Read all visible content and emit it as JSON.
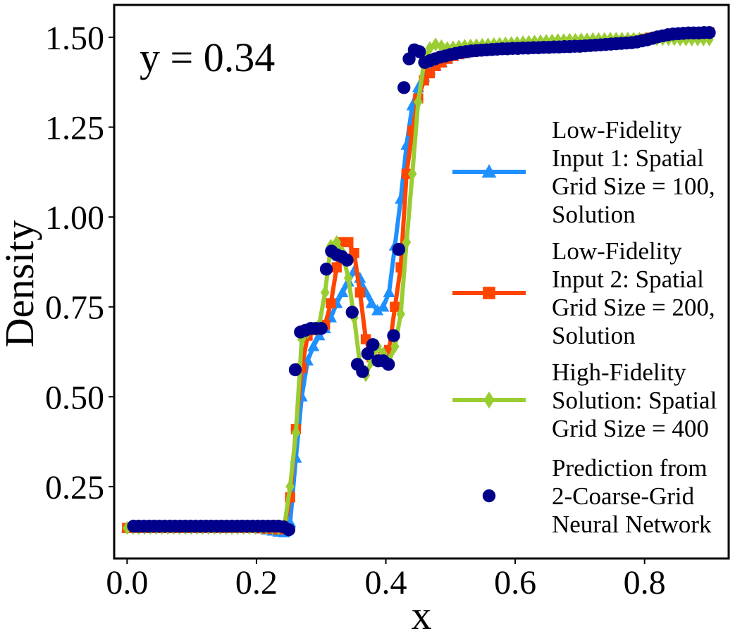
{
  "chart_data": {
    "type": "line",
    "title": "",
    "xlabel": "x",
    "ylabel": "Density",
    "annotation": "y = 0.34",
    "xlim": [
      -0.02,
      0.93
    ],
    "ylim": [
      0.05,
      1.59
    ],
    "xticks": [
      0.0,
      0.2,
      0.4,
      0.6,
      0.8
    ],
    "xtick_labels": [
      "0.0",
      "0.2",
      "0.4",
      "0.6",
      "0.8"
    ],
    "yticks": [
      0.25,
      0.5,
      0.75,
      1.0,
      1.25,
      1.5
    ],
    "ytick_labels": [
      "0.25",
      "0.50",
      "0.75",
      "1.00",
      "1.25",
      "1.50"
    ],
    "grid": false,
    "legend_position": "right",
    "series": [
      {
        "name": "Low-Fidelity Input 1: Spatial Grid Size = 100, Solution",
        "legend_lines": [
          "Low-Fidelity",
          "Input 1: Spatial",
          "Grid Size = 100,",
          "Solution"
        ],
        "color": "#1e90ff",
        "marker": "triangle",
        "x": [
          0.0,
          0.009,
          0.018,
          0.027,
          0.036,
          0.045,
          0.054,
          0.063,
          0.072,
          0.081,
          0.09,
          0.099,
          0.108,
          0.117,
          0.126,
          0.135,
          0.144,
          0.153,
          0.162,
          0.171,
          0.18,
          0.189,
          0.198,
          0.207,
          0.216,
          0.225,
          0.234,
          0.243,
          0.252,
          0.261,
          0.27,
          0.279,
          0.288,
          0.297,
          0.306,
          0.315,
          0.324,
          0.333,
          0.342,
          0.351,
          0.36,
          0.369,
          0.378,
          0.387,
          0.396,
          0.405,
          0.414,
          0.423,
          0.432,
          0.441,
          0.45,
          0.459,
          0.468,
          0.477,
          0.486,
          0.495,
          0.504,
          0.513,
          0.522,
          0.531,
          0.54,
          0.549,
          0.558,
          0.567,
          0.576,
          0.585,
          0.594,
          0.603,
          0.612,
          0.621,
          0.63,
          0.639,
          0.648,
          0.657,
          0.666,
          0.675,
          0.684,
          0.693,
          0.702,
          0.711,
          0.72,
          0.729,
          0.738,
          0.747,
          0.756,
          0.765,
          0.774,
          0.783,
          0.792,
          0.801,
          0.81,
          0.819,
          0.828,
          0.837,
          0.846,
          0.855,
          0.864,
          0.873,
          0.882,
          0.891,
          0.9
        ],
        "y": [
          0.135,
          0.135,
          0.135,
          0.135,
          0.135,
          0.135,
          0.135,
          0.135,
          0.135,
          0.135,
          0.135,
          0.135,
          0.135,
          0.135,
          0.135,
          0.135,
          0.135,
          0.135,
          0.135,
          0.135,
          0.135,
          0.135,
          0.135,
          0.133,
          0.13,
          0.127,
          0.124,
          0.122,
          0.15,
          0.33,
          0.5,
          0.6,
          0.64,
          0.67,
          0.69,
          0.72,
          0.76,
          0.79,
          0.82,
          0.85,
          0.83,
          0.79,
          0.76,
          0.74,
          0.75,
          0.79,
          0.92,
          1.05,
          1.2,
          1.31,
          1.36,
          1.39,
          1.41,
          1.42,
          1.43,
          1.44,
          1.447,
          1.452,
          1.455,
          1.458,
          1.46,
          1.461,
          1.462,
          1.463,
          1.464,
          1.465,
          1.466,
          1.467,
          1.468,
          1.469,
          1.47,
          1.47,
          1.471,
          1.472,
          1.473,
          1.474,
          1.475,
          1.476,
          1.477,
          1.478,
          1.479,
          1.48,
          1.481,
          1.482,
          1.483,
          1.485,
          1.487,
          1.489,
          1.491,
          1.494,
          1.497,
          1.5,
          1.503,
          1.506,
          1.508,
          1.51,
          1.511,
          1.512,
          1.513,
          1.514,
          1.515
        ]
      },
      {
        "name": "Low-Fidelity Input 2: Spatial Grid Size = 200, Solution",
        "legend_lines": [
          "Low-Fidelity",
          "Input 2: Spatial",
          "Grid Size = 200,",
          "Solution"
        ],
        "color": "#ff4500",
        "marker": "square",
        "x": [
          0.0,
          0.009,
          0.018,
          0.027,
          0.036,
          0.045,
          0.054,
          0.063,
          0.072,
          0.081,
          0.09,
          0.099,
          0.108,
          0.117,
          0.126,
          0.135,
          0.144,
          0.153,
          0.162,
          0.171,
          0.18,
          0.189,
          0.198,
          0.207,
          0.216,
          0.225,
          0.234,
          0.243,
          0.252,
          0.261,
          0.27,
          0.279,
          0.288,
          0.297,
          0.306,
          0.315,
          0.324,
          0.333,
          0.342,
          0.351,
          0.36,
          0.369,
          0.378,
          0.387,
          0.396,
          0.405,
          0.414,
          0.423,
          0.432,
          0.441,
          0.45,
          0.459,
          0.468,
          0.477,
          0.486,
          0.495,
          0.504,
          0.513,
          0.522,
          0.531,
          0.54,
          0.549,
          0.558,
          0.567,
          0.576,
          0.585,
          0.594,
          0.603,
          0.612,
          0.621,
          0.63,
          0.639,
          0.648,
          0.657,
          0.666,
          0.675,
          0.684,
          0.693,
          0.702,
          0.711,
          0.72,
          0.729,
          0.738,
          0.747,
          0.756,
          0.765,
          0.774,
          0.783,
          0.792,
          0.801,
          0.81,
          0.819,
          0.828,
          0.837,
          0.846,
          0.855,
          0.864,
          0.873,
          0.882,
          0.891,
          0.9
        ],
        "y": [
          0.135,
          0.135,
          0.135,
          0.135,
          0.135,
          0.135,
          0.135,
          0.135,
          0.135,
          0.135,
          0.135,
          0.135,
          0.135,
          0.135,
          0.135,
          0.135,
          0.135,
          0.135,
          0.135,
          0.135,
          0.135,
          0.135,
          0.135,
          0.134,
          0.133,
          0.132,
          0.131,
          0.135,
          0.22,
          0.41,
          0.58,
          0.67,
          0.685,
          0.69,
          0.7,
          0.76,
          0.86,
          0.93,
          0.93,
          0.9,
          0.79,
          0.66,
          0.61,
          0.6,
          0.61,
          0.63,
          0.75,
          0.86,
          1.12,
          1.24,
          1.33,
          1.38,
          1.4,
          1.42,
          1.43,
          1.44,
          1.448,
          1.453,
          1.456,
          1.459,
          1.461,
          1.462,
          1.463,
          1.464,
          1.465,
          1.466,
          1.467,
          1.468,
          1.469,
          1.47,
          1.471,
          1.472,
          1.473,
          1.474,
          1.475,
          1.476,
          1.477,
          1.478,
          1.479,
          1.48,
          1.481,
          1.482,
          1.483,
          1.484,
          1.485,
          1.487,
          1.489,
          1.491,
          1.493,
          1.496,
          1.499,
          1.502,
          1.504,
          1.506,
          1.508,
          1.509,
          1.51,
          1.511,
          1.512,
          1.513,
          1.514
        ]
      },
      {
        "name": "High-Fidelity Solution: Spatial Grid Size = 400",
        "legend_lines": [
          "High-Fidelity",
          "Solution: Spatial",
          "Grid Size = 400"
        ],
        "color": "#9acd32",
        "marker": "diamond",
        "x": [
          0.0,
          0.009,
          0.018,
          0.027,
          0.036,
          0.045,
          0.054,
          0.063,
          0.072,
          0.081,
          0.09,
          0.099,
          0.108,
          0.117,
          0.126,
          0.135,
          0.144,
          0.153,
          0.162,
          0.171,
          0.18,
          0.189,
          0.198,
          0.207,
          0.216,
          0.225,
          0.234,
          0.243,
          0.252,
          0.261,
          0.27,
          0.279,
          0.288,
          0.297,
          0.306,
          0.315,
          0.324,
          0.333,
          0.342,
          0.351,
          0.36,
          0.369,
          0.378,
          0.387,
          0.396,
          0.405,
          0.414,
          0.423,
          0.432,
          0.441,
          0.45,
          0.459,
          0.468,
          0.477,
          0.486,
          0.495,
          0.504,
          0.513,
          0.522,
          0.531,
          0.54,
          0.549,
          0.558,
          0.567,
          0.576,
          0.585,
          0.594,
          0.603,
          0.612,
          0.621,
          0.63,
          0.639,
          0.648,
          0.657,
          0.666,
          0.675,
          0.684,
          0.693,
          0.702,
          0.711,
          0.72,
          0.729,
          0.738,
          0.747,
          0.756,
          0.765,
          0.774,
          0.783,
          0.792,
          0.801,
          0.81,
          0.819,
          0.828,
          0.837,
          0.846,
          0.855,
          0.864,
          0.873,
          0.882,
          0.891,
          0.9
        ],
        "y": [
          0.135,
          0.135,
          0.135,
          0.135,
          0.135,
          0.135,
          0.135,
          0.135,
          0.135,
          0.135,
          0.135,
          0.135,
          0.135,
          0.135,
          0.135,
          0.135,
          0.135,
          0.135,
          0.135,
          0.135,
          0.135,
          0.135,
          0.135,
          0.135,
          0.135,
          0.135,
          0.134,
          0.14,
          0.25,
          0.4,
          0.66,
          0.68,
          0.69,
          0.7,
          0.79,
          0.92,
          0.93,
          0.9,
          0.83,
          0.72,
          0.59,
          0.56,
          0.6,
          0.64,
          0.62,
          0.6,
          0.64,
          0.73,
          0.93,
          1.12,
          1.32,
          1.43,
          1.47,
          1.48,
          1.475,
          1.47,
          1.472,
          1.474,
          1.476,
          1.477,
          1.478,
          1.479,
          1.48,
          1.481,
          1.482,
          1.483,
          1.484,
          1.485,
          1.486,
          1.487,
          1.488,
          1.489,
          1.49,
          1.491,
          1.492,
          1.492,
          1.493,
          1.493,
          1.494,
          1.494,
          1.495,
          1.495,
          1.495,
          1.496,
          1.496,
          1.496,
          1.496,
          1.496,
          1.496,
          1.496,
          1.496,
          1.495,
          1.495,
          1.495,
          1.495,
          1.494,
          1.494,
          1.494,
          1.494,
          1.494,
          1.494
        ]
      },
      {
        "name": "Prediction from 2-Coarse-Grid Neural Network",
        "legend_lines": [
          "Prediction from",
          "2-Coarse-Grid",
          "Neural Network"
        ],
        "color": "#00008b",
        "marker": "circle",
        "x": [
          0.01,
          0.018,
          0.026,
          0.034,
          0.042,
          0.05,
          0.058,
          0.066,
          0.074,
          0.082,
          0.09,
          0.098,
          0.106,
          0.114,
          0.122,
          0.13,
          0.138,
          0.146,
          0.154,
          0.162,
          0.17,
          0.178,
          0.186,
          0.194,
          0.202,
          0.21,
          0.218,
          0.226,
          0.234,
          0.242,
          0.25,
          0.26,
          0.268,
          0.276,
          0.284,
          0.292,
          0.3,
          0.308,
          0.316,
          0.324,
          0.332,
          0.34,
          0.348,
          0.356,
          0.364,
          0.372,
          0.38,
          0.388,
          0.396,
          0.404,
          0.412,
          0.42,
          0.428,
          0.436,
          0.444,
          0.452,
          0.46,
          0.468,
          0.476,
          0.484,
          0.492,
          0.5,
          0.508,
          0.516,
          0.524,
          0.532,
          0.54,
          0.548,
          0.556,
          0.564,
          0.572,
          0.58,
          0.588,
          0.596,
          0.604,
          0.612,
          0.62,
          0.628,
          0.636,
          0.644,
          0.652,
          0.66,
          0.668,
          0.676,
          0.684,
          0.692,
          0.7,
          0.708,
          0.716,
          0.724,
          0.732,
          0.74,
          0.748,
          0.756,
          0.764,
          0.772,
          0.78,
          0.788,
          0.796,
          0.804,
          0.812,
          0.82,
          0.828,
          0.836,
          0.844,
          0.852,
          0.86,
          0.868,
          0.876,
          0.884,
          0.892,
          0.9
        ],
        "y": [
          0.14,
          0.14,
          0.14,
          0.14,
          0.14,
          0.14,
          0.14,
          0.14,
          0.14,
          0.14,
          0.14,
          0.14,
          0.14,
          0.14,
          0.14,
          0.14,
          0.14,
          0.14,
          0.14,
          0.14,
          0.14,
          0.14,
          0.14,
          0.14,
          0.14,
          0.14,
          0.14,
          0.14,
          0.14,
          0.138,
          0.13,
          0.575,
          0.68,
          0.685,
          0.69,
          0.69,
          0.69,
          0.855,
          0.905,
          0.895,
          0.89,
          0.88,
          0.735,
          0.59,
          0.57,
          0.62,
          0.645,
          0.6,
          0.6,
          0.59,
          0.67,
          0.91,
          1.36,
          1.44,
          1.465,
          1.46,
          1.43,
          1.435,
          1.44,
          1.445,
          1.448,
          1.452,
          1.455,
          1.458,
          1.46,
          1.462,
          1.463,
          1.464,
          1.465,
          1.466,
          1.467,
          1.468,
          1.468,
          1.469,
          1.469,
          1.47,
          1.47,
          1.471,
          1.471,
          1.472,
          1.472,
          1.473,
          1.473,
          1.474,
          1.474,
          1.475,
          1.475,
          1.476,
          1.477,
          1.478,
          1.479,
          1.48,
          1.481,
          1.482,
          1.483,
          1.484,
          1.485,
          1.487,
          1.49,
          1.493,
          1.497,
          1.501,
          1.504,
          1.507,
          1.509,
          1.51,
          1.511,
          1.512,
          1.512,
          1.512,
          1.513,
          1.513
        ]
      }
    ]
  }
}
